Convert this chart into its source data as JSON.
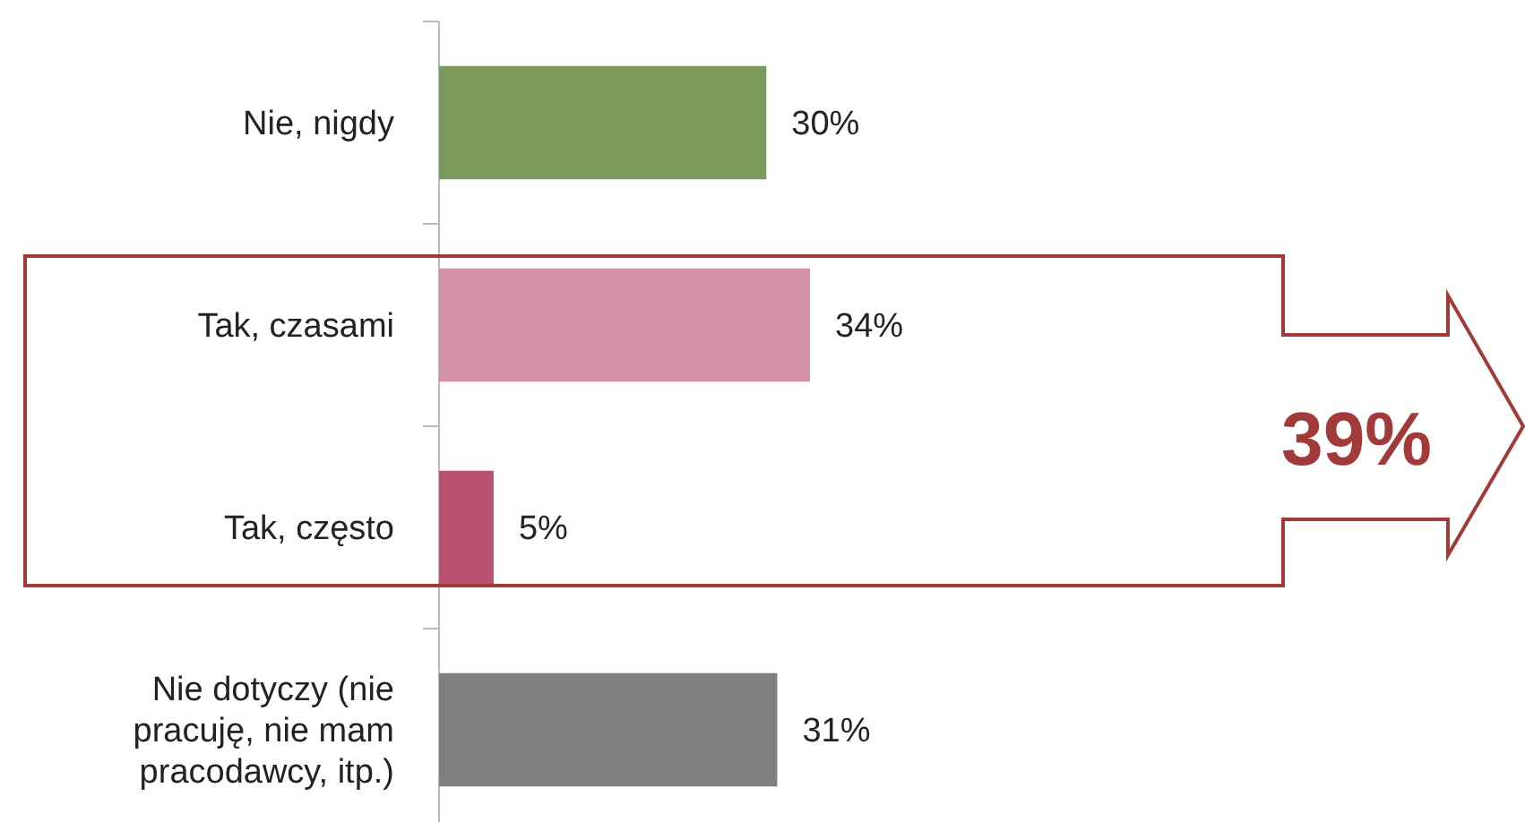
{
  "chart_data": {
    "type": "bar",
    "orientation": "horizontal",
    "categories": [
      "Nie, nigdy",
      "Tak, czasami",
      "Tak, często",
      "Nie dotyczy (nie pracuję, nie mam pracodawcy, itp.)"
    ],
    "values": [
      30,
      34,
      5,
      31
    ],
    "colors": [
      "#7a9a5e",
      "#d291a8",
      "#b9526f",
      "#808080"
    ],
    "value_labels": [
      "30%",
      "34%",
      "5%",
      "31%"
    ],
    "annotations": [
      "39%"
    ]
  }
}
